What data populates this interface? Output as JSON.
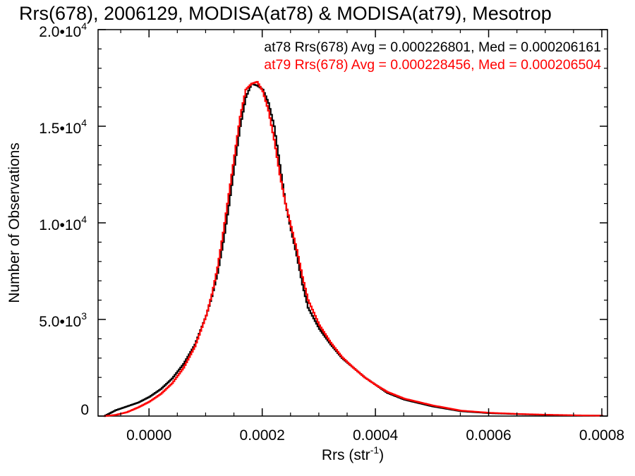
{
  "chart_data": {
    "type": "line",
    "title": "Rrs(678), 2006129, MODISA(at78) & MODISA(at79), Mesotrop",
    "xlabel": "Rrs (str",
    "xlabel_sup": "-1",
    "xlabel_close": ")",
    "ylabel": "Number of Observations",
    "xlim": [
      -9e-05,
      0.00081
    ],
    "ylim": [
      0,
      20000
    ],
    "x_ticks": [
      {
        "value": 0.0,
        "label": "0.0000"
      },
      {
        "value": 0.0002,
        "label": "0.0002"
      },
      {
        "value": 0.0004,
        "label": "0.0004"
      },
      {
        "value": 0.0006,
        "label": "0.0006"
      },
      {
        "value": 0.0008,
        "label": "0.0008"
      }
    ],
    "y_ticks": [
      {
        "value": 0,
        "base": "0",
        "sup": ""
      },
      {
        "value": 5000,
        "base": "5.0•10",
        "sup": "3"
      },
      {
        "value": 10000,
        "base": "1.0•10",
        "sup": "4"
      },
      {
        "value": 15000,
        "base": "1.5•10",
        "sup": "4"
      },
      {
        "value": 20000,
        "base": "2.0•10",
        "sup": "4"
      }
    ],
    "grid": false,
    "annotations": [
      {
        "text": "at78 Rrs(678) Avg = 0.000226801, Med = 0.000206161",
        "color": "#000000"
      },
      {
        "text": "at79 Rrs(678) Avg = 0.000228456, Med = 0.000206504",
        "color": "#ff0000"
      }
    ],
    "series": [
      {
        "color": "#000000",
        "x": [
          -8e-05,
          -6e-05,
          -4e-05,
          -2e-05,
          0.0,
          2e-05,
          4e-05,
          6e-05,
          8e-05,
          0.0001,
          0.00011,
          0.00012,
          0.00013,
          0.00014,
          0.00015,
          0.00016,
          0.00017,
          0.00018,
          0.00019,
          0.0002,
          0.00021,
          0.00022,
          0.00023,
          0.00024,
          0.00025,
          0.00026,
          0.00027,
          0.00028,
          0.0003,
          0.00032,
          0.00034,
          0.00036,
          0.00038,
          0.0004,
          0.00042,
          0.00045,
          0.0005,
          0.00055,
          0.0006,
          0.00065,
          0.0007,
          0.00075,
          0.0008
        ],
        "y": [
          0,
          300,
          500,
          700,
          1000,
          1400,
          1950,
          2700,
          3700,
          5200,
          6200,
          7400,
          9000,
          10900,
          13000,
          15000,
          16500,
          17200,
          17100,
          16900,
          16200,
          15000,
          13000,
          11000,
          9600,
          8300,
          6800,
          5600,
          4500,
          3700,
          3000,
          2500,
          2000,
          1600,
          1200,
          850,
          500,
          250,
          150,
          100,
          60,
          30,
          20
        ]
      },
      {
        "color": "#ff0000",
        "x": [
          -8e-05,
          -6e-05,
          -4e-05,
          -2e-05,
          0.0,
          2e-05,
          4e-05,
          6e-05,
          8e-05,
          0.0001,
          0.00011,
          0.00012,
          0.00013,
          0.00014,
          0.00015,
          0.00016,
          0.00017,
          0.00018,
          0.00019,
          0.0002,
          0.00021,
          0.00022,
          0.00023,
          0.00024,
          0.00025,
          0.00026,
          0.00027,
          0.00028,
          0.0003,
          0.00032,
          0.00034,
          0.00036,
          0.00038,
          0.0004,
          0.00042,
          0.00045,
          0.0005,
          0.00055,
          0.0006,
          0.00065,
          0.0007,
          0.00075,
          0.0008
        ],
        "y": [
          0,
          60,
          200,
          450,
          750,
          1150,
          1700,
          2500,
          3600,
          5200,
          6300,
          7700,
          9500,
          11500,
          13500,
          15500,
          16900,
          17200,
          17300,
          16800,
          15800,
          14300,
          12500,
          11000,
          9800,
          8600,
          7200,
          6000,
          4700,
          3800,
          3050,
          2500,
          2000,
          1600,
          1250,
          900,
          550,
          280,
          170,
          110,
          70,
          40,
          20
        ]
      }
    ]
  }
}
